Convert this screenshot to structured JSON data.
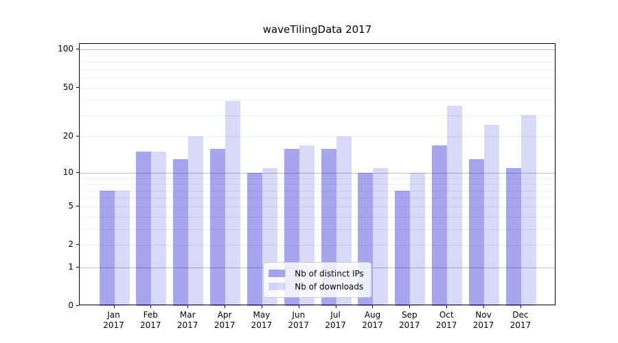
{
  "chart_data": {
    "type": "bar",
    "title": "waveTilingData 2017",
    "categories": [
      "Jan 2017",
      "Feb 2017",
      "Mar 2017",
      "Apr 2017",
      "May 2017",
      "Jun 2017",
      "Jul 2017",
      "Aug 2017",
      "Sep 2017",
      "Oct 2017",
      "Nov 2017",
      "Dec 2017"
    ],
    "series": [
      {
        "name": "Nb of distinct IPs",
        "fill": "rgba(0,0,210,0.35)",
        "values": [
          7,
          15,
          13,
          16,
          10,
          16,
          16,
          10,
          7,
          17,
          13,
          11
        ]
      },
      {
        "name": "Nb of downloads",
        "fill": "rgba(0,0,210,0.15)",
        "values": [
          7,
          15,
          20,
          39,
          11,
          17,
          20,
          11,
          10,
          36,
          25,
          30
        ]
      }
    ],
    "y_axis": {
      "scale": "log1p",
      "tick_values": [
        0,
        1,
        2,
        5,
        10,
        20,
        50,
        100
      ],
      "tick_labels": [
        "0",
        "1",
        "2",
        "5",
        "10",
        "20",
        "50",
        "100"
      ],
      "decade_gridlines": [
        1,
        10,
        100
      ],
      "minor_gridlines": [
        2,
        3,
        4,
        5,
        6,
        7,
        8,
        9,
        20,
        30,
        40,
        50,
        60,
        70,
        80,
        90
      ],
      "top_value": 110
    },
    "legend": {
      "position": "lower center"
    },
    "grid": true,
    "colors": {
      "decade_grid": "#bdbdbd",
      "minor_grid": "#ececec",
      "spine": "#000000",
      "text": "#000000"
    }
  }
}
